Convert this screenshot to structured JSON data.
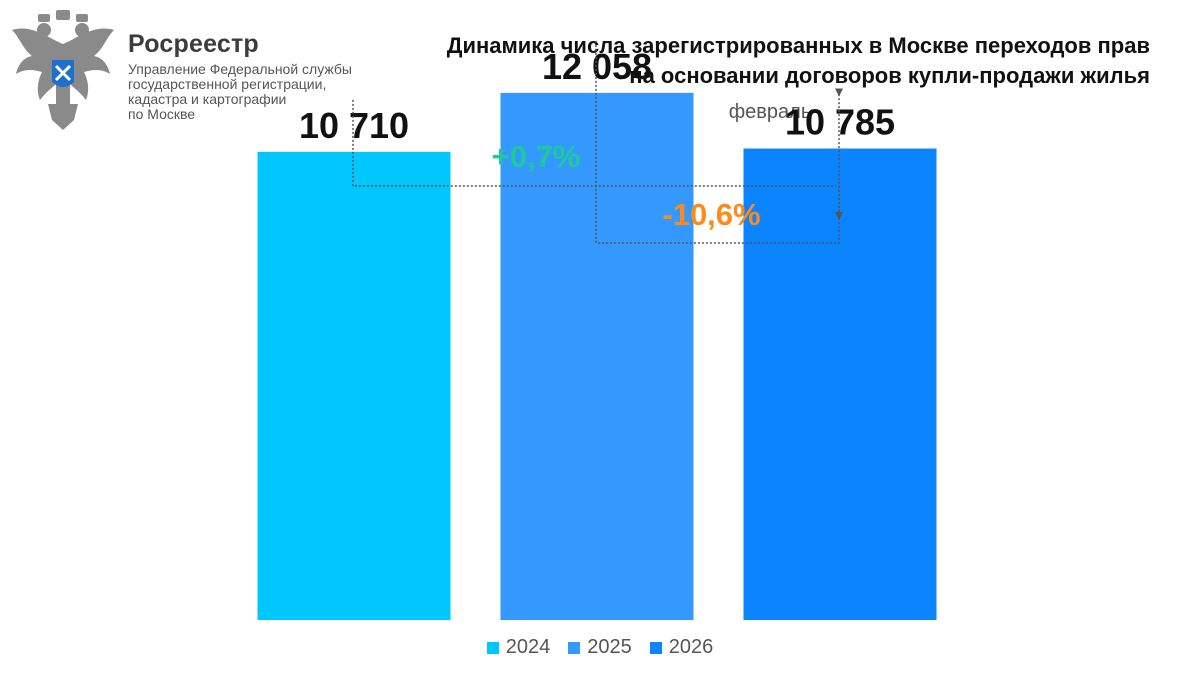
{
  "header": {
    "org_name": "Росреестр",
    "org_sub": [
      "Управление Федеральной службы",
      "государственной регистрации,",
      "кадастра и картографии",
      "по Москве"
    ]
  },
  "chart_data": {
    "type": "bar",
    "title_lines": [
      "Динамика числа зарегистрированных в Москве переходов прав",
      "на основании договоров купли-продажи жилья"
    ],
    "subtitle": "февраль",
    "categories": [
      "2024",
      "2025",
      "2026"
    ],
    "values": [
      10710,
      12058,
      10785
    ],
    "value_labels": [
      "10 710",
      "12 058",
      "10 785"
    ],
    "colors": [
      "#00c8ff",
      "#3399ff",
      "#0a84ff"
    ],
    "ylim": [
      0,
      14000
    ],
    "grid": false,
    "legend_position": "bottom",
    "annotations": [
      {
        "text": "+0,7%",
        "from": "2024",
        "to": "2026",
        "color": "#1ec99a"
      },
      {
        "text": "-10,6%",
        "from": "2025",
        "to": "2026",
        "color": "#ff8a1c"
      }
    ]
  }
}
